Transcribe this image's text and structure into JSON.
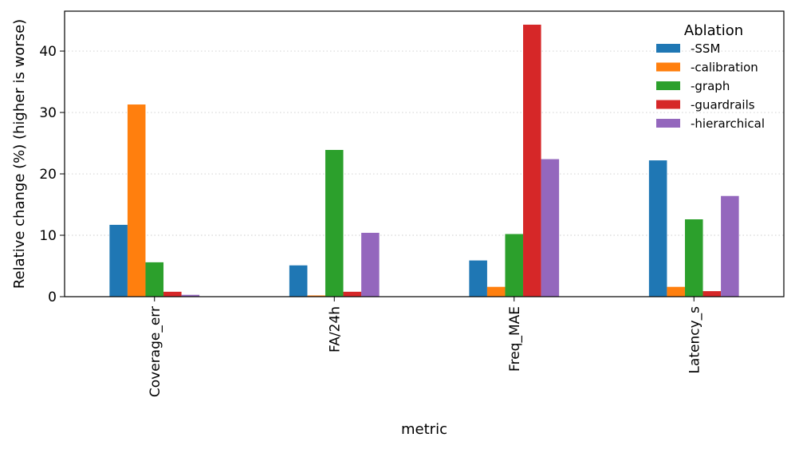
{
  "chart_data": {
    "type": "bar",
    "xlabel": "metric",
    "ylabel": "Relative change (%) (higher is worse)",
    "categories": [
      "Coverage_err",
      "FA/24h",
      "Freq_MAE",
      "Latency_s"
    ],
    "series": [
      {
        "name": "-SSM",
        "color": "#1f77b4",
        "values": [
          11.7,
          5.1,
          5.9,
          22.2
        ]
      },
      {
        "name": "-calibration",
        "color": "#ff7f0e",
        "values": [
          31.3,
          0.2,
          1.6,
          1.6
        ]
      },
      {
        "name": "-graph",
        "color": "#2ca02c",
        "values": [
          5.6,
          23.9,
          10.2,
          12.6
        ]
      },
      {
        "name": "-guardrails",
        "color": "#d62728",
        "values": [
          0.8,
          0.8,
          44.3,
          0.9
        ]
      },
      {
        "name": "-hierarchical",
        "color": "#9467bd",
        "values": [
          0.3,
          10.4,
          22.4,
          16.4
        ]
      }
    ],
    "ylim": [
      0,
      46.5
    ],
    "yticks": [
      0,
      10,
      20,
      30,
      40
    ],
    "grid": "y-dotted",
    "legend": {
      "title": "Ablation",
      "placement": "top-right"
    }
  }
}
